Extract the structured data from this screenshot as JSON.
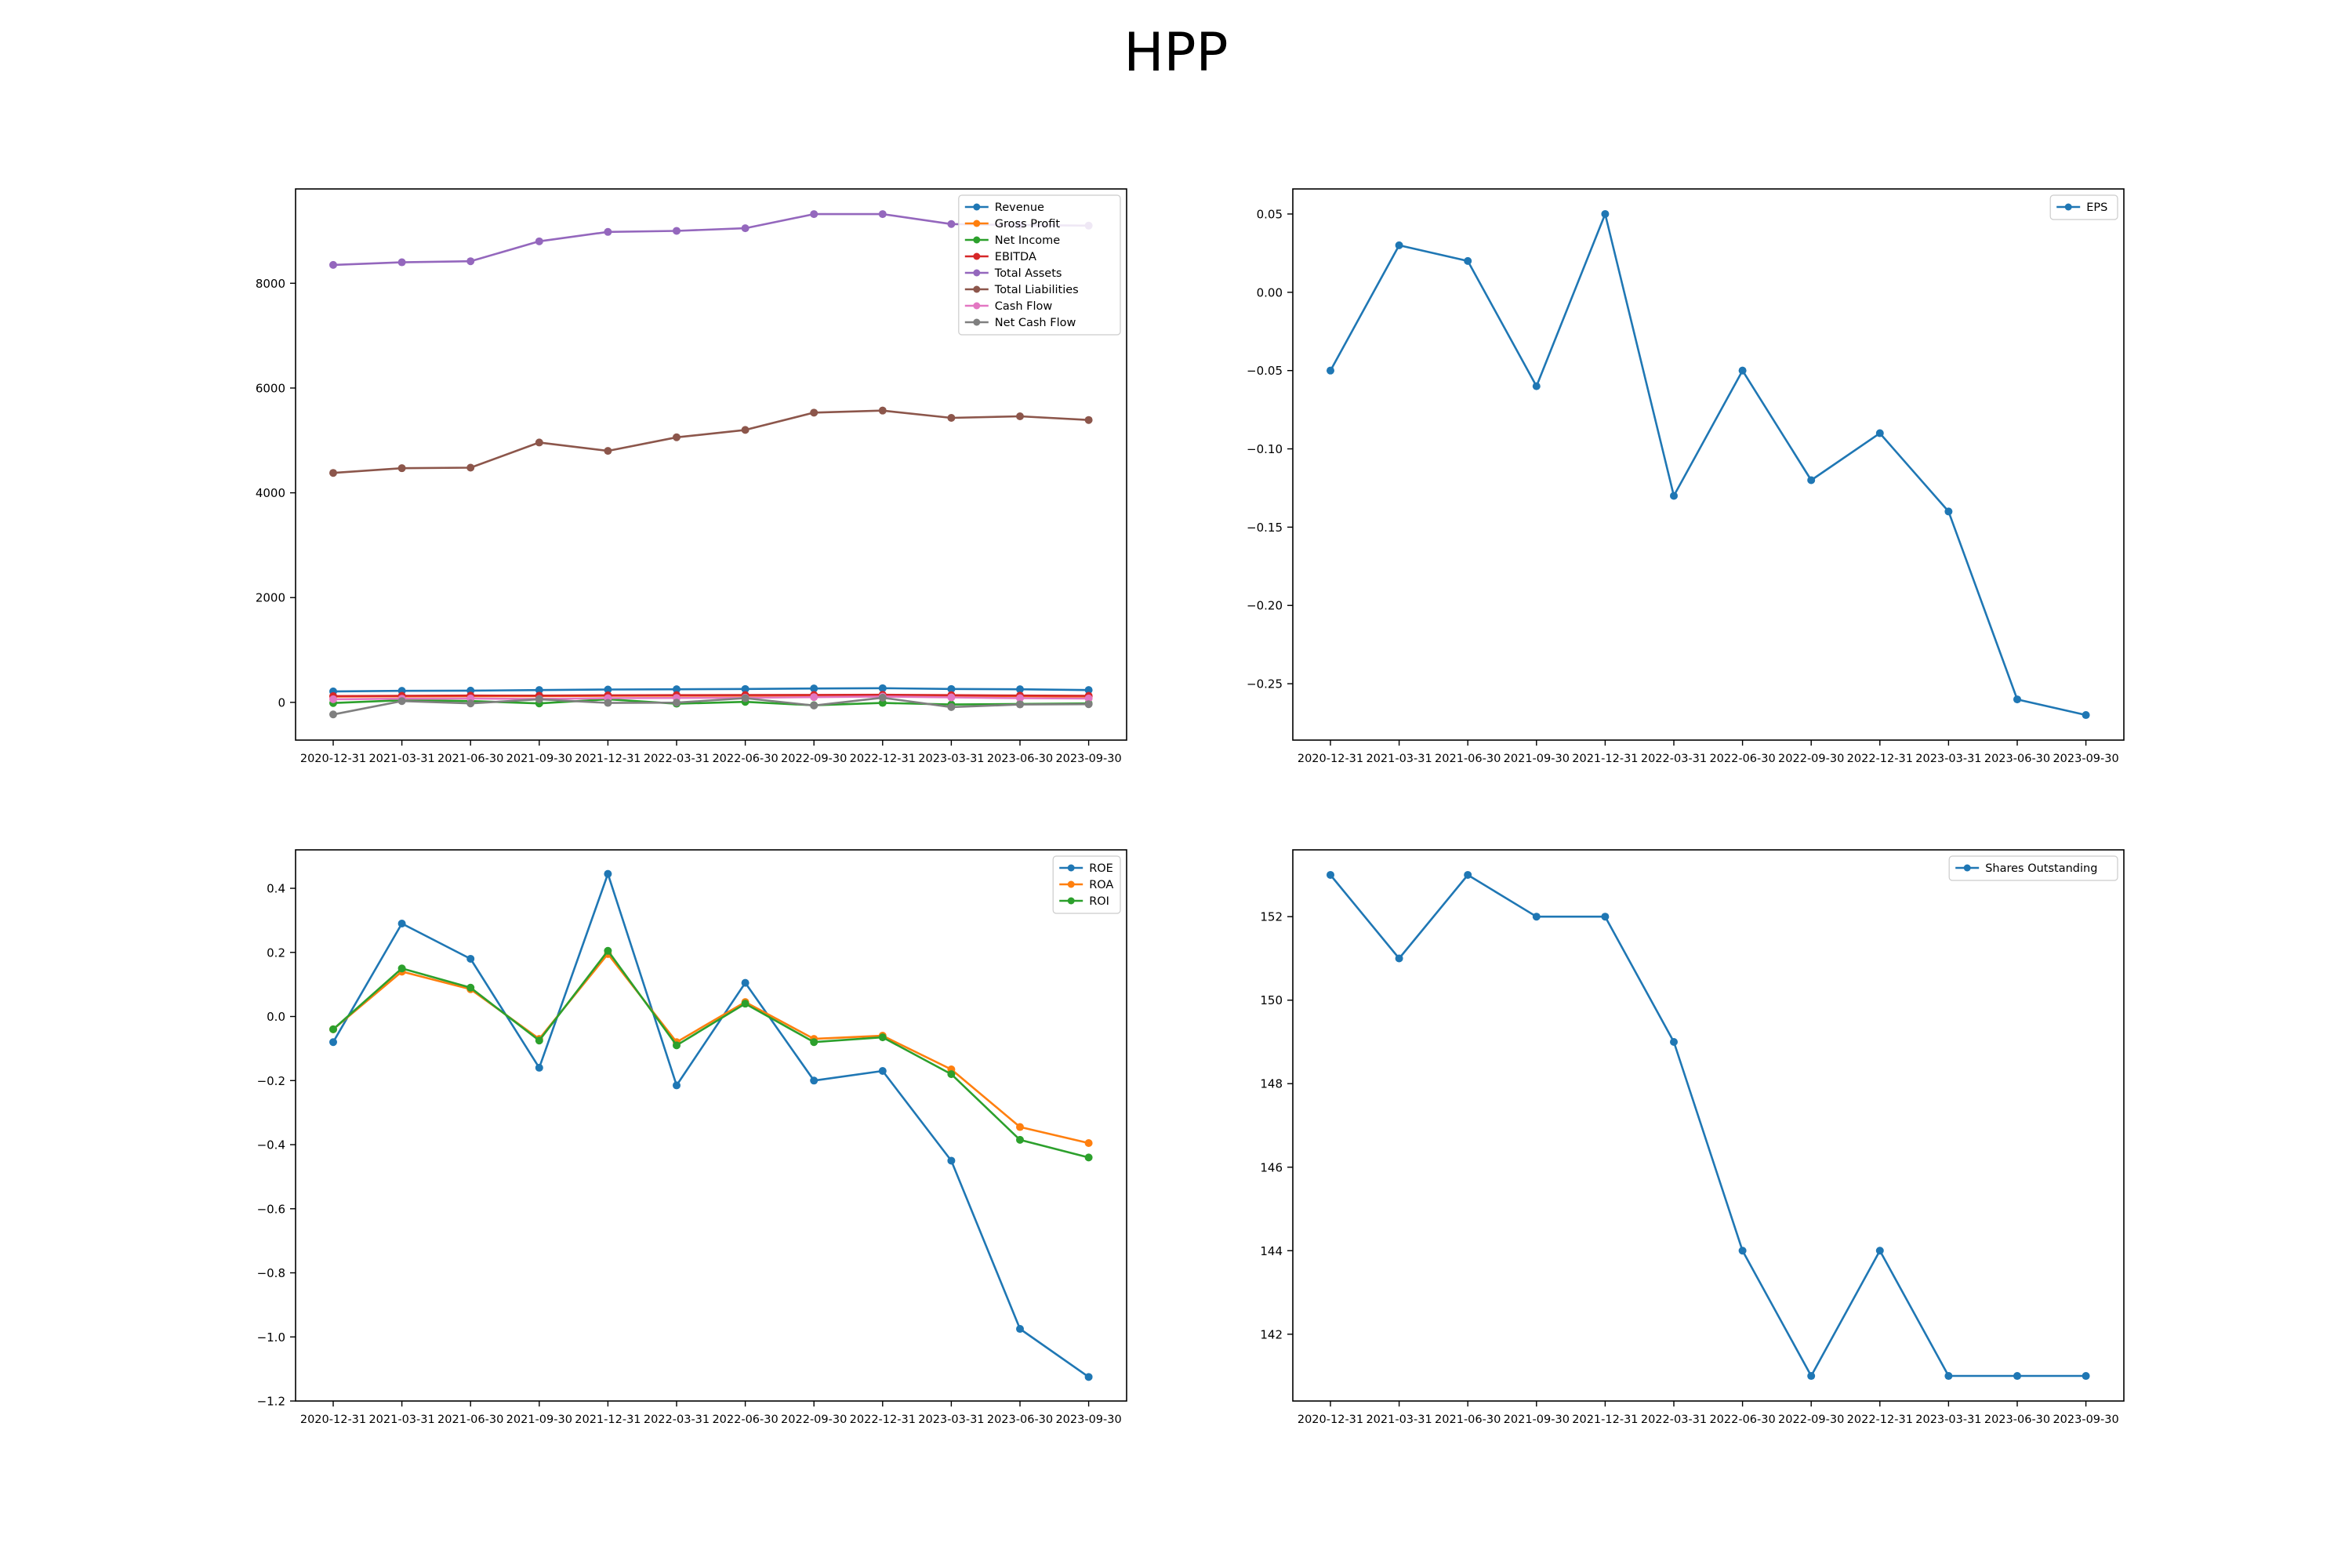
{
  "figure": {
    "title": "HPP"
  },
  "chart_data": [
    {
      "type": "line",
      "x": [
        "2020-12-31",
        "2021-03-31",
        "2021-06-30",
        "2021-09-30",
        "2021-12-31",
        "2022-03-31",
        "2022-06-30",
        "2022-09-30",
        "2022-12-31",
        "2023-03-31",
        "2023-06-30",
        "2023-09-30"
      ],
      "ylim": [
        -720,
        9800
      ],
      "yticks": [
        0,
        2000,
        4000,
        6000,
        8000
      ],
      "grid": false,
      "legend": "top-right",
      "series": [
        {
          "name": "Revenue",
          "color": "#1f77b4",
          "values": [
            210,
            220,
            225,
            235,
            245,
            250,
            255,
            265,
            270,
            255,
            250,
            235
          ]
        },
        {
          "name": "Gross Profit",
          "color": "#ff7f0e",
          "values": [
            110,
            115,
            118,
            120,
            125,
            128,
            130,
            132,
            135,
            125,
            118,
            110
          ]
        },
        {
          "name": "Net Income",
          "color": "#2ca02c",
          "values": [
            -12,
            40,
            25,
            -20,
            60,
            -25,
            10,
            -55,
            -10,
            -40,
            -30,
            -20
          ]
        },
        {
          "name": "EBITDA",
          "color": "#d62728",
          "values": [
            120,
            125,
            130,
            128,
            135,
            138,
            140,
            142,
            145,
            138,
            130,
            125
          ]
        },
        {
          "name": "Total Assets",
          "color": "#9467bd",
          "values": [
            8350,
            8400,
            8420,
            8800,
            8980,
            9000,
            9050,
            9320,
            9320,
            9130,
            9110,
            9100
          ]
        },
        {
          "name": "Total Liabilities",
          "color": "#8c564b",
          "values": [
            4380,
            4470,
            4480,
            4960,
            4800,
            5060,
            5200,
            5530,
            5570,
            5430,
            5460,
            5390
          ]
        },
        {
          "name": "Cash Flow",
          "color": "#e377c2",
          "values": [
            60,
            70,
            75,
            65,
            80,
            85,
            90,
            100,
            110,
            95,
            80,
            75
          ]
        },
        {
          "name": "Net Cash Flow",
          "color": "#7f7f7f",
          "values": [
            -230,
            25,
            -20,
            60,
            -10,
            -5,
            80,
            -60,
            90,
            -90,
            -40,
            -35
          ]
        }
      ]
    },
    {
      "type": "line",
      "x": [
        "2020-12-31",
        "2021-03-31",
        "2021-06-30",
        "2021-09-30",
        "2021-12-31",
        "2022-03-31",
        "2022-06-30",
        "2022-09-30",
        "2022-12-31",
        "2023-03-31",
        "2023-06-30",
        "2023-09-30"
      ],
      "ylim": [
        -0.286,
        0.066
      ],
      "yticks": [
        -0.25,
        -0.2,
        -0.15,
        -0.1,
        -0.05,
        0.0,
        0.05
      ],
      "ytick_labels": [
        "−0.25",
        "−0.20",
        "−0.15",
        "−0.10",
        "−0.05",
        "0.00",
        "0.05"
      ],
      "grid": false,
      "legend": "top-right",
      "series": [
        {
          "name": "EPS",
          "color": "#1f77b4",
          "values": [
            -0.05,
            0.03,
            0.02,
            -0.06,
            0.05,
            -0.13,
            -0.05,
            -0.12,
            -0.09,
            -0.14,
            -0.26,
            -0.27
          ]
        }
      ]
    },
    {
      "type": "line",
      "x": [
        "2020-12-31",
        "2021-03-31",
        "2021-06-30",
        "2021-09-30",
        "2021-12-31",
        "2022-03-31",
        "2022-06-30",
        "2022-09-30",
        "2022-12-31",
        "2023-03-31",
        "2023-06-30",
        "2023-09-30"
      ],
      "ylim": [
        -1.2,
        0.52
      ],
      "yticks": [
        -1.2,
        -1.0,
        -0.8,
        -0.6,
        -0.4,
        -0.2,
        0.0,
        0.2,
        0.4
      ],
      "ytick_labels": [
        "−1.2",
        "−1.0",
        "−0.8",
        "−0.6",
        "−0.4",
        "−0.2",
        "0.0",
        "0.2",
        "0.4"
      ],
      "grid": false,
      "legend": "top-right",
      "series": [
        {
          "name": "ROE",
          "color": "#1f77b4",
          "values": [
            -0.08,
            0.29,
            0.18,
            -0.16,
            0.445,
            -0.215,
            0.105,
            -0.2,
            -0.17,
            -0.45,
            -0.975,
            -1.125
          ]
        },
        {
          "name": "ROA",
          "color": "#ff7f0e",
          "values": [
            -0.04,
            0.14,
            0.085,
            -0.07,
            0.195,
            -0.08,
            0.045,
            -0.07,
            -0.06,
            -0.165,
            -0.345,
            -0.395
          ]
        },
        {
          "name": "ROI",
          "color": "#2ca02c",
          "values": [
            -0.04,
            0.15,
            0.09,
            -0.075,
            0.205,
            -0.09,
            0.04,
            -0.08,
            -0.065,
            -0.18,
            -0.385,
            -0.44
          ]
        }
      ]
    },
    {
      "type": "line",
      "x": [
        "2020-12-31",
        "2021-03-31",
        "2021-06-30",
        "2021-09-30",
        "2021-12-31",
        "2022-03-31",
        "2022-06-30",
        "2022-09-30",
        "2022-12-31",
        "2023-03-31",
        "2023-06-30",
        "2023-09-30"
      ],
      "ylim": [
        140.4,
        153.6
      ],
      "yticks": [
        142,
        144,
        146,
        148,
        150,
        152
      ],
      "grid": false,
      "legend": "top-right",
      "series": [
        {
          "name": "Shares Outstanding",
          "color": "#1f77b4",
          "values": [
            153,
            151,
            153,
            152,
            152,
            149,
            144,
            141,
            144,
            141,
            141,
            141
          ]
        }
      ]
    }
  ]
}
